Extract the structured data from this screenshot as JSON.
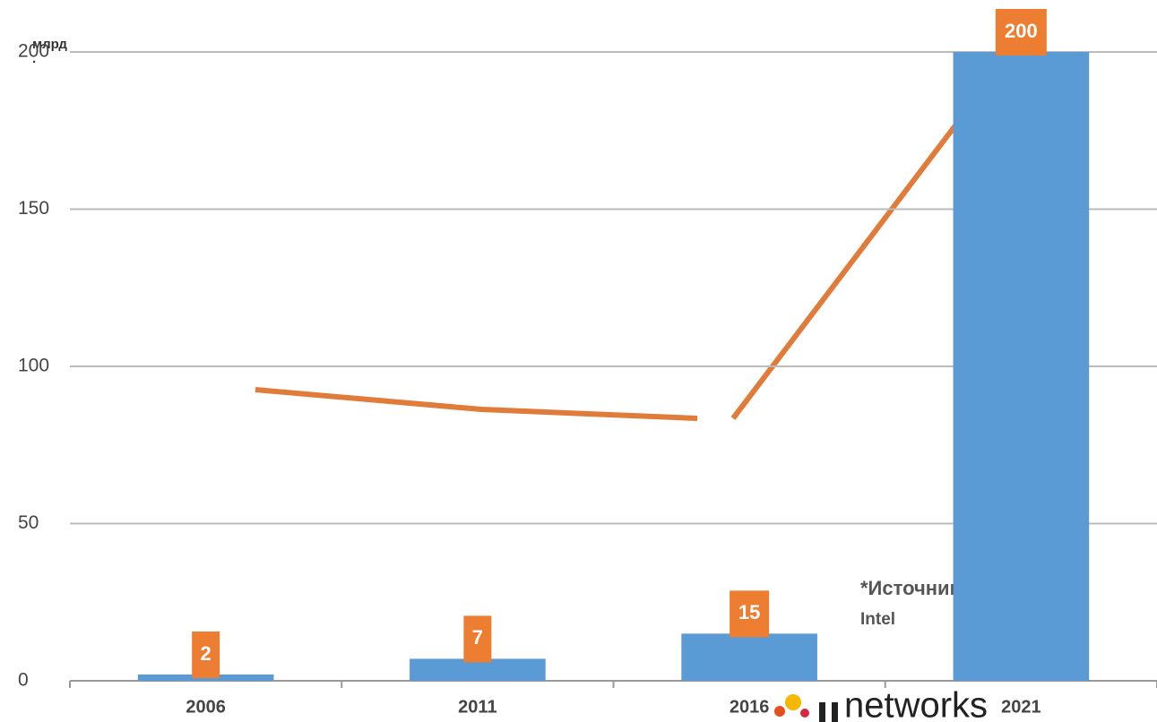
{
  "chart_data": {
    "type": "bar",
    "y_label": [
      "млрд",
      "."
    ],
    "categories": [
      "2006",
      "2011",
      "2016",
      "2021"
    ],
    "values": [
      2,
      7,
      15,
      200
    ],
    "color": "#5b9bd5",
    "label_color": "#ed7d31",
    "ylim": [
      0,
      200
    ],
    "yticks": [
      0,
      50,
      100,
      150,
      200
    ],
    "grid": true,
    "annotation": [
      "*Источник:",
      "Intel"
    ],
    "logo": "networks"
  }
}
